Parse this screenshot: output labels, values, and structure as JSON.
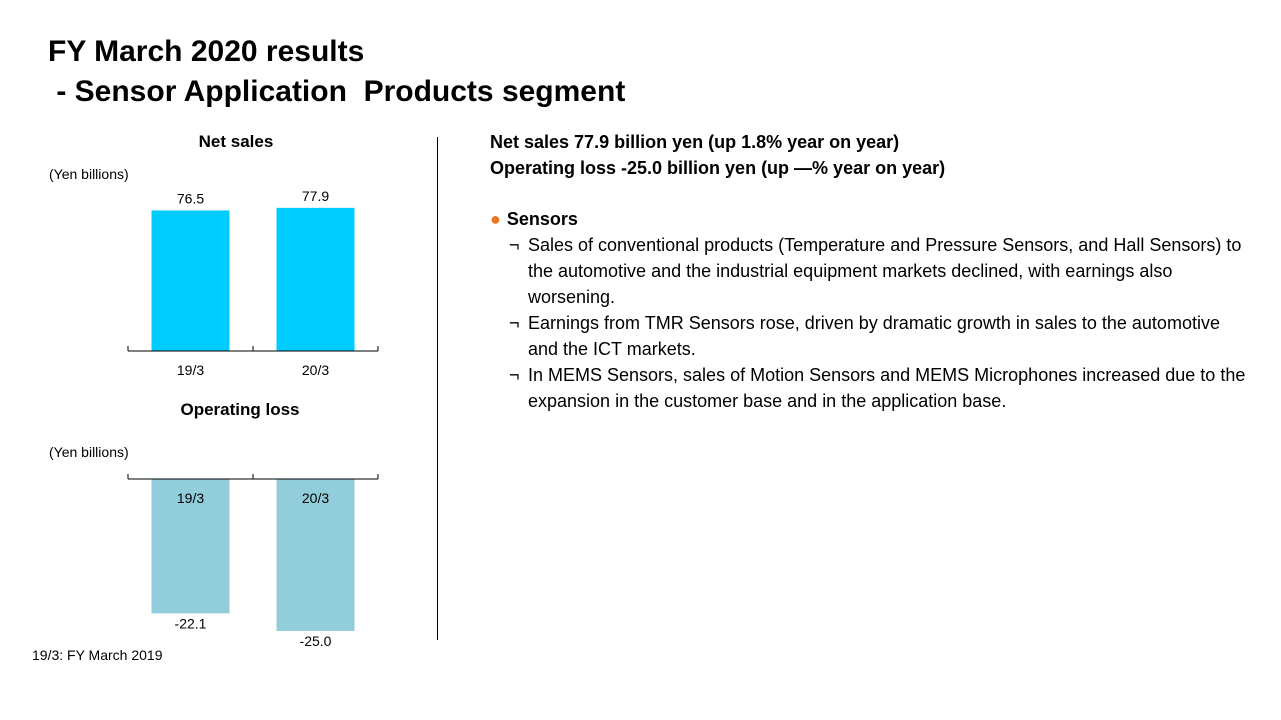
{
  "title": {
    "line1": "FY March 2020 results",
    "line2": " - Sensor Application  Products segment"
  },
  "left": {
    "net_sales_title": "Net sales",
    "operating_title": "Operating loss",
    "unit": "(Yen billions)",
    "footnote": "19/3: FY March 2019"
  },
  "chart_data": [
    {
      "type": "bar",
      "title": "Net sales",
      "ylabel": "(Yen billions)",
      "categories": [
        "19/3",
        "20/3"
      ],
      "values": [
        76.5,
        77.9
      ],
      "labels": [
        "76.5",
        "77.9"
      ],
      "ylim": [
        0,
        80
      ],
      "color": "#00ccff",
      "grid": false
    },
    {
      "type": "bar",
      "title": "Operating loss",
      "ylabel": "(Yen billions)",
      "categories": [
        "19/3",
        "20/3"
      ],
      "values": [
        -22.1,
        -25.0
      ],
      "labels": [
        "-22.1",
        "-25.0"
      ],
      "ylim": [
        -25,
        0
      ],
      "color": "#92cddc",
      "grid": false
    }
  ],
  "summary": {
    "line1": "Net sales 77.9 billion  yen (up 1.8% year on year)",
    "line2": "Operating loss -25.0 billion  yen (up —% year on year)"
  },
  "sensors": {
    "bullet": "●",
    "heading": "Sensors",
    "sub_mark": "¬",
    "items": [
      "Sales of conventional products (Temperature  and Pressure Sensors, and Hall Sensors) to the automotive and the industrial equipment markets declined, with earnings also worsening.",
      "Earnings from TMR Sensors rose, driven by dramatic growth in sales to the automotive and the ICT markets.",
      "In MEMS Sensors, sales of Motion Sensors and MEMS Microphones increased due to the expansion in the customer base and in the application base."
    ]
  }
}
